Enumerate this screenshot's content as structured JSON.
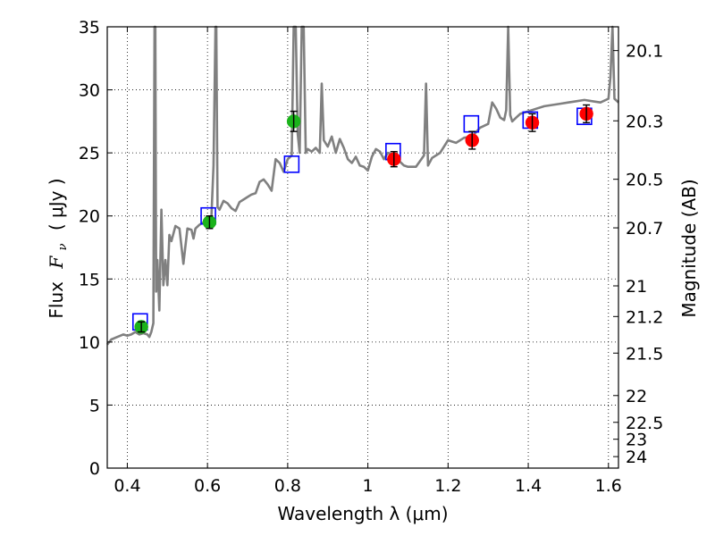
{
  "chart_data": {
    "type": "scatter",
    "xlabel": "Wavelength  λ (μm)",
    "ylabel_left_text": "Flux",
    "ylabel_left_math": "F",
    "ylabel_left_sub": "ν",
    "ylabel_left_units": "( μJy )",
    "ylabel_right": "Magnitude (AB)",
    "xlim": [
      0.35,
      1.625
    ],
    "ylim": [
      0,
      35
    ],
    "grid": true,
    "xticks": [
      {
        "value": 0.4,
        "label": "0.4"
      },
      {
        "value": 0.6,
        "label": "0.6"
      },
      {
        "value": 0.8,
        "label": "0.8"
      },
      {
        "value": 1.0,
        "label": "1"
      },
      {
        "value": 1.2,
        "label": "1.2"
      },
      {
        "value": 1.4,
        "label": "1.4"
      },
      {
        "value": 1.6,
        "label": "1.6"
      }
    ],
    "yticks": [
      {
        "value": 0,
        "label": "0"
      },
      {
        "value": 5,
        "label": "5"
      },
      {
        "value": 10,
        "label": "10"
      },
      {
        "value": 15,
        "label": "15"
      },
      {
        "value": 20,
        "label": "20"
      },
      {
        "value": 25,
        "label": "25"
      },
      {
        "value": 30,
        "label": "30"
      },
      {
        "value": 35,
        "label": "35"
      }
    ],
    "right_ticks": [
      {
        "mag": 20.1,
        "label": "20.1"
      },
      {
        "mag": 20.3,
        "label": "20.3"
      },
      {
        "mag": 20.5,
        "label": "20.5"
      },
      {
        "mag": 20.7,
        "label": "20.7"
      },
      {
        "mag": 21,
        "label": "21"
      },
      {
        "mag": 21.2,
        "label": "21.2"
      },
      {
        "mag": 21.5,
        "label": "21.5"
      },
      {
        "mag": 22,
        "label": "22"
      },
      {
        "mag": 22.5,
        "label": "22.5"
      },
      {
        "mag": 23,
        "label": "23"
      },
      {
        "mag": 24,
        "label": "24"
      }
    ],
    "colors": {
      "spectrum": "#808080",
      "green_points": "#1bb31b",
      "red_points": "#ff0000",
      "model_boxes": "#0000ff",
      "errorbars": "#000000"
    },
    "spectrum": {
      "name": "",
      "x": [
        0.35,
        0.36,
        0.375,
        0.39,
        0.4,
        0.41,
        0.42,
        0.43,
        0.44,
        0.45,
        0.455,
        0.46,
        0.465,
        0.468,
        0.47,
        0.472,
        0.475,
        0.48,
        0.485,
        0.49,
        0.495,
        0.5,
        0.505,
        0.51,
        0.52,
        0.53,
        0.54,
        0.55,
        0.56,
        0.565,
        0.57,
        0.58,
        0.59,
        0.6,
        0.61,
        0.615,
        0.62,
        0.622,
        0.625,
        0.63,
        0.64,
        0.65,
        0.66,
        0.67,
        0.68,
        0.69,
        0.7,
        0.71,
        0.72,
        0.73,
        0.74,
        0.75,
        0.76,
        0.77,
        0.78,
        0.79,
        0.8,
        0.81,
        0.815,
        0.82,
        0.825,
        0.83,
        0.835,
        0.84,
        0.845,
        0.85,
        0.86,
        0.87,
        0.88,
        0.885,
        0.89,
        0.9,
        0.91,
        0.92,
        0.93,
        0.94,
        0.95,
        0.96,
        0.97,
        0.98,
        0.99,
        1.0,
        1.01,
        1.02,
        1.03,
        1.04,
        1.05,
        1.06,
        1.07,
        1.08,
        1.09,
        1.1,
        1.12,
        1.14,
        1.145,
        1.15,
        1.16,
        1.18,
        1.2,
        1.22,
        1.24,
        1.26,
        1.28,
        1.3,
        1.31,
        1.32,
        1.33,
        1.34,
        1.345,
        1.35,
        1.355,
        1.36,
        1.37,
        1.38,
        1.4,
        1.42,
        1.44,
        1.46,
        1.48,
        1.5,
        1.52,
        1.54,
        1.56,
        1.58,
        1.6,
        1.605,
        1.61,
        1.615,
        1.625
      ],
      "y": [
        9.8,
        10.2,
        10.4,
        10.6,
        10.5,
        10.6,
        10.8,
        10.6,
        10.7,
        10.6,
        10.4,
        10.8,
        11.5,
        35,
        35,
        14,
        16.5,
        12.5,
        20.5,
        14.5,
        16.5,
        14.5,
        18.5,
        18.0,
        19.2,
        19.0,
        16.2,
        19.0,
        18.9,
        18.2,
        19.0,
        19.3,
        19.5,
        19.8,
        20.0,
        24,
        35,
        35,
        20.7,
        20.5,
        21.2,
        21.0,
        20.6,
        20.4,
        21.1,
        21.3,
        21.5,
        21.7,
        21.8,
        22.7,
        22.9,
        22.5,
        22.0,
        24.5,
        24.2,
        23.5,
        24.5,
        24.8,
        35,
        35,
        26.5,
        25.0,
        35,
        35,
        25.0,
        25.3,
        25.1,
        25.4,
        25.0,
        30.5,
        26.0,
        25.5,
        26.3,
        25.0,
        26.1,
        25.4,
        24.5,
        24.2,
        24.7,
        24.0,
        23.9,
        23.6,
        24.7,
        25.3,
        25.1,
        24.5,
        25.0,
        24.9,
        24.7,
        24.3,
        24.0,
        23.9,
        23.9,
        24.8,
        30.5,
        24.0,
        24.6,
        25.0,
        26.0,
        25.8,
        26.2,
        26.3,
        27.0,
        27.3,
        29.0,
        28.5,
        27.8,
        27.6,
        28.4,
        35,
        28.0,
        27.5,
        27.8,
        28.1,
        28.3,
        28.5,
        28.7,
        28.8,
        28.9,
        29.0,
        29.1,
        29.2,
        29.1,
        29.0,
        29.3,
        31,
        35,
        29.3,
        29.0
      ]
    },
    "series": [
      {
        "name": "",
        "color": "green",
        "x": [
          0.435,
          0.605,
          0.815
        ],
        "y": [
          11.2,
          19.5,
          27.5
        ],
        "yerr": [
          0.4,
          0.5,
          0.8
        ]
      },
      {
        "name": "",
        "color": "red",
        "x": [
          1.065,
          1.26,
          1.41,
          1.545
        ],
        "y": [
          24.5,
          26.0,
          27.4,
          28.1
        ],
        "yerr": [
          0.6,
          0.7,
          0.7,
          0.7
        ]
      },
      {
        "name": "",
        "color": "blue-box",
        "x": [
          0.432,
          0.602,
          0.81,
          1.063,
          1.258,
          1.405,
          1.54
        ],
        "y": [
          11.6,
          20.0,
          24.1,
          25.1,
          27.3,
          27.6,
          27.9
        ]
      }
    ]
  }
}
